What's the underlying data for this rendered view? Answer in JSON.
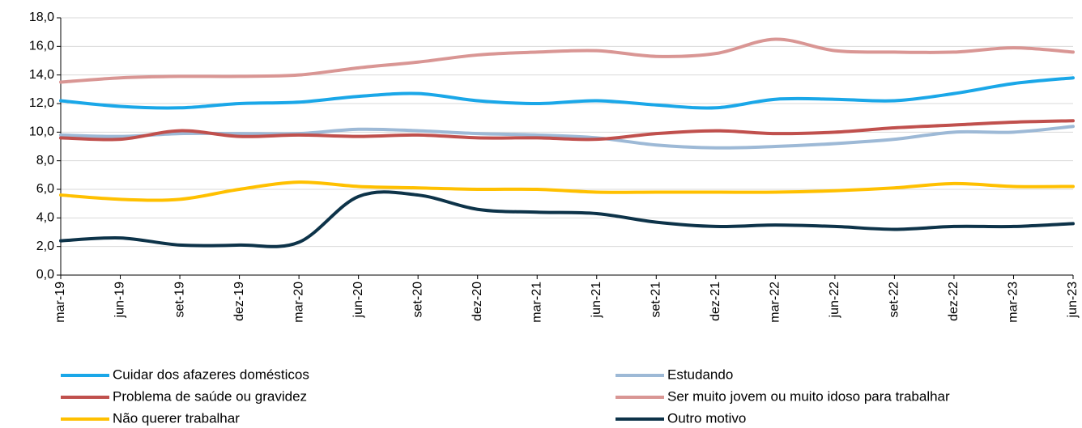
{
  "chart_data": {
    "type": "line",
    "categories": [
      "mar-19",
      "jun-19",
      "set-19",
      "dez-19",
      "mar-20",
      "jun-20",
      "set-20",
      "dez-20",
      "mar-21",
      "jun-21",
      "set-21",
      "dez-21",
      "mar-22",
      "jun-22",
      "set-22",
      "dez-22",
      "mar-23",
      "jun-23"
    ],
    "ylim": [
      0,
      18
    ],
    "yticks": [
      {
        "value": 0,
        "label": "0,0"
      },
      {
        "value": 2,
        "label": "2,0"
      },
      {
        "value": 4,
        "label": "4,0"
      },
      {
        "value": 6,
        "label": "6,0"
      },
      {
        "value": 8,
        "label": "8,0"
      },
      {
        "value": 10,
        "label": "10,0"
      },
      {
        "value": 12,
        "label": "12,0"
      },
      {
        "value": 14,
        "label": "14,0"
      },
      {
        "value": 16,
        "label": "16,0"
      },
      {
        "value": 18,
        "label": "18,0"
      }
    ],
    "grid": true,
    "series": [
      {
        "name": "Cuidar dos afazeres domésticos",
        "color": "#1aa7e8",
        "values": [
          12.2,
          11.8,
          11.7,
          12.0,
          12.1,
          12.5,
          12.7,
          12.2,
          12.0,
          12.2,
          11.9,
          11.7,
          12.3,
          12.3,
          12.2,
          12.7,
          13.4,
          13.8
        ]
      },
      {
        "name": "Estudando",
        "color": "#9db9d6",
        "values": [
          9.8,
          9.7,
          9.9,
          9.9,
          9.9,
          10.2,
          10.1,
          9.9,
          9.8,
          9.6,
          9.1,
          8.9,
          9.0,
          9.2,
          9.5,
          10.0,
          10.0,
          10.4
        ]
      },
      {
        "name": "Problema de saúde ou gravidez",
        "color": "#c0504d",
        "values": [
          9.6,
          9.5,
          10.1,
          9.7,
          9.8,
          9.7,
          9.8,
          9.6,
          9.6,
          9.5,
          9.9,
          10.1,
          9.9,
          10.0,
          10.3,
          10.5,
          10.7,
          10.8
        ]
      },
      {
        "name": "Ser muito jovem ou muito idoso para trabalhar",
        "color": "#d99694",
        "values": [
          13.5,
          13.8,
          13.9,
          13.9,
          14.0,
          14.5,
          14.9,
          15.4,
          15.6,
          15.7,
          15.3,
          15.5,
          16.5,
          15.7,
          15.6,
          15.6,
          15.9,
          15.6
        ]
      },
      {
        "name": "Não querer trabalhar",
        "color": "#ffc000",
        "values": [
          5.6,
          5.3,
          5.3,
          6.0,
          6.5,
          6.2,
          6.1,
          6.0,
          6.0,
          5.8,
          5.8,
          5.8,
          5.8,
          5.9,
          6.1,
          6.4,
          6.2,
          6.2
        ]
      },
      {
        "name": "Outro motivo",
        "color": "#0d3349",
        "values": [
          2.4,
          2.6,
          2.1,
          2.1,
          2.3,
          5.5,
          5.6,
          4.6,
          4.4,
          4.3,
          3.7,
          3.4,
          3.5,
          3.4,
          3.2,
          3.4,
          3.4,
          3.6
        ]
      }
    ]
  }
}
